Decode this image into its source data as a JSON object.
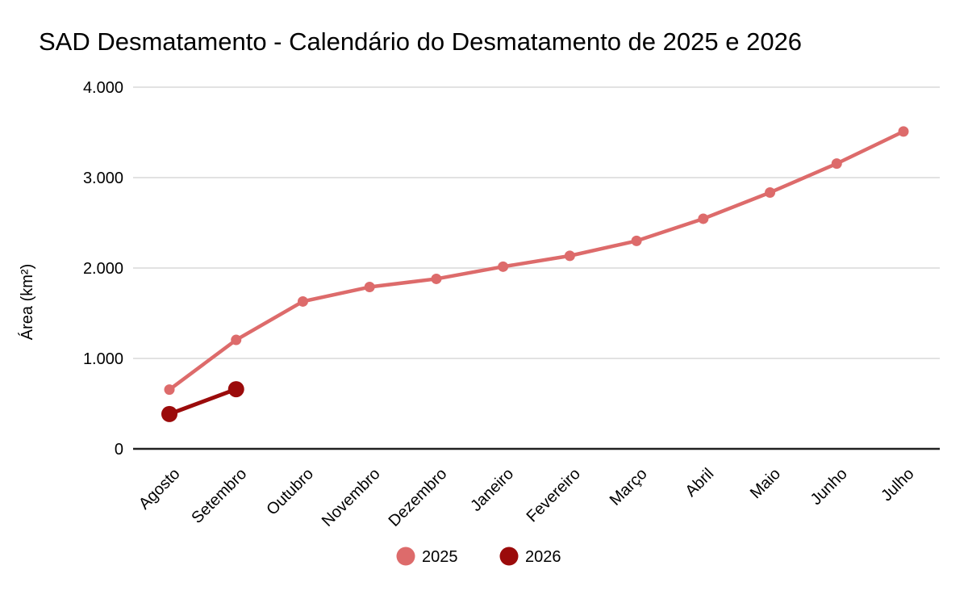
{
  "title": "SAD Desmatamento - Calendário do Desmatamento de 2025 e 2026",
  "colors": {
    "background": "#ffffff",
    "text": "#000000",
    "gridline": "#d9d9d9",
    "axis_line": "#212121",
    "series_2025": "#dd6b6b",
    "series_2026": "#9b0b0b"
  },
  "chart_data": {
    "type": "line",
    "title": "SAD Desmatamento - Calendário do Desmatamento de 2025 e 2026",
    "xlabel": "",
    "ylabel": "Área (km²)",
    "ylim": [
      0,
      4000
    ],
    "grid": true,
    "legend_position": "bottom",
    "categories": [
      "Agosto",
      "Setembro",
      "Outubro",
      "Novembro",
      "Dezembro",
      "Janeiro",
      "Fevereiro",
      "Março",
      "Abril",
      "Maio",
      "Junho",
      "Julho"
    ],
    "y_ticks": [
      {
        "value": 0,
        "label": "0"
      },
      {
        "value": 1000,
        "label": "1.000"
      },
      {
        "value": 2000,
        "label": "2.000"
      },
      {
        "value": 3000,
        "label": "3.000"
      },
      {
        "value": 4000,
        "label": "4.000"
      }
    ],
    "series": [
      {
        "name": "2025",
        "color": "#dd6b6b",
        "point_radius": 6.5,
        "line_width": 4.5,
        "values": [
          655,
          1205,
          1630,
          1790,
          1880,
          2015,
          2135,
          2300,
          2545,
          2835,
          3155,
          3510
        ]
      },
      {
        "name": "2026",
        "color": "#9b0b0b",
        "point_radius": 10,
        "line_width": 5,
        "values": [
          385,
          660,
          null,
          null,
          null,
          null,
          null,
          null,
          null,
          null,
          null,
          null
        ]
      }
    ]
  }
}
